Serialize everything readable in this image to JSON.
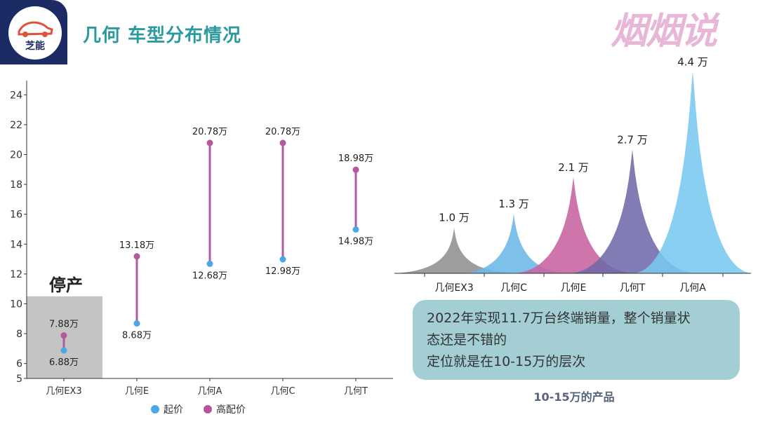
{
  "header": {
    "logo_text": "芝能",
    "title": "几何 车型分布情况",
    "watermark": "烟烟说"
  },
  "chart_data": [
    {
      "type": "dumbbell",
      "categories": [
        "几何EX3",
        "几何E",
        "几何A",
        "几何C",
        "几何T"
      ],
      "y_ticks": [
        "5",
        "6",
        "8",
        "10",
        "12",
        "14",
        "16",
        "18",
        "20",
        "22",
        "24"
      ],
      "ylim": [
        5,
        25
      ],
      "series": [
        {
          "name": "起价",
          "color": "#4aa8e6",
          "values": [
            6.88,
            8.68,
            12.68,
            12.98,
            14.98
          ],
          "labels": [
            "6.88万",
            "8.68万",
            "12.68万",
            "12.98万",
            "14.98万"
          ]
        },
        {
          "name": "高配价",
          "color": "#b5579d",
          "values": [
            7.88,
            13.18,
            20.78,
            20.78,
            18.98
          ],
          "labels": [
            "7.88万",
            "13.18万",
            "20.78万",
            "20.78万",
            "18.98万"
          ]
        }
      ],
      "annotation": "停产",
      "annotation_range": [
        5,
        10.5
      ],
      "legend_position": "bottom"
    },
    {
      "type": "area",
      "categories": [
        "几何EX3",
        "几何C",
        "几何E",
        "几何T",
        "几何A"
      ],
      "values": [
        1.0,
        1.3,
        2.1,
        2.7,
        4.4
      ],
      "labels": [
        "1.0 万",
        "1.3 万",
        "2.1 万",
        "2.7 万",
        "4.4 万"
      ],
      "colors": [
        "#8f8f8f",
        "#6bb8e8",
        "#c7629f",
        "#6f6aa8",
        "#77c8ef"
      ]
    }
  ],
  "info_box": {
    "lines": [
      "2022年实现11.7万台终端销量，整个销量状",
      "态还是不错的",
      "定位就是在10-15万的层次"
    ]
  },
  "caption": "10-15万的产品"
}
